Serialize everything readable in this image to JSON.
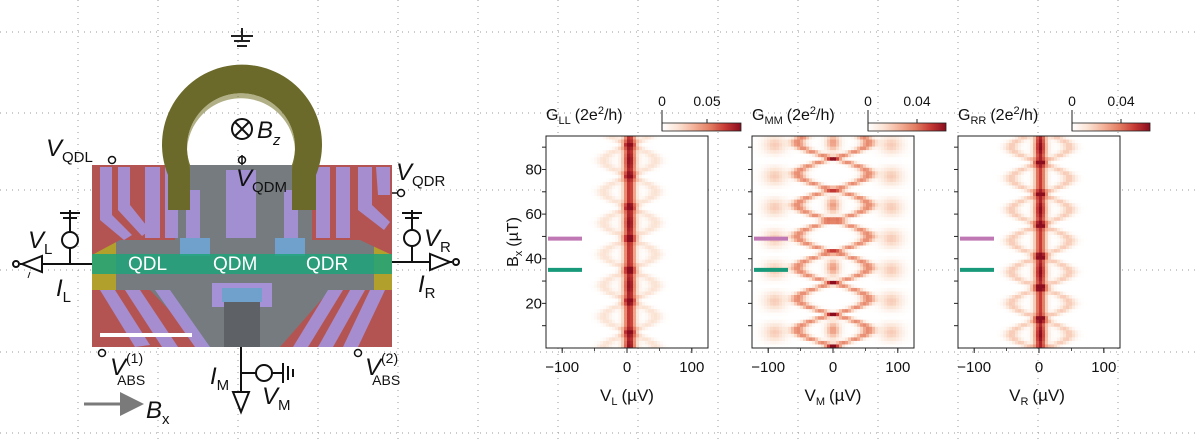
{
  "device": {
    "labels": {
      "v_qdl": "V",
      "v_qdl_sub": "QDL",
      "v_qdm": "V",
      "v_qdm_sub": "QDM",
      "v_qdr": "V",
      "v_qdr_sub": "QDR",
      "bz": "B",
      "bz_sub": "z",
      "vl": "V",
      "vl_sub": "L",
      "il": "I",
      "il_sub": "L",
      "vr": "V",
      "vr_sub": "R",
      "ir": "I",
      "ir_sub": "R",
      "qdl": "QDL",
      "qdm": "QDM",
      "qdr": "QDR",
      "vabs1": "V",
      "vabs1_sup": "(1)",
      "vabs1_sub": "ABS",
      "vabs2": "V",
      "vabs2_sup": "(2)",
      "vabs2_sub": "ABS",
      "im": "I",
      "im_sub": "M",
      "vm": "V",
      "vm_sub": "M",
      "bx": "B",
      "bx_sub": "x"
    },
    "colors": {
      "ring": "#6b6a2a",
      "gate_purple": "#a591d6",
      "contact_red": "#b35452",
      "wire_green": "#1fa37a",
      "lead_yellow": "#b2a02c",
      "substrate": "#757b7f"
    }
  },
  "chart_data": [
    {
      "type": "heatmap",
      "title": "G_LL (2e²/h)",
      "colorbar_label_main": "G",
      "colorbar_label_sub": "LL",
      "colorbar_label_unit": "(2e",
      "colorbar_label_tail": "/h)",
      "colorbar_ticks": [
        "0",
        "0.05"
      ],
      "colorbar_range": [
        0,
        0.07
      ],
      "xlabel_main": "V",
      "xlabel_sub": "L",
      "xlabel_unit": "(µV)",
      "ylabel_main": "B",
      "ylabel_sub": "x",
      "ylabel_unit": "(µT)",
      "xlim": [
        -125,
        125
      ],
      "ylim": [
        0,
        95
      ],
      "xticks": [
        -100,
        0,
        100
      ],
      "xtick_labels": [
        "−100",
        "0",
        "100"
      ],
      "yticks": [
        20,
        40,
        60,
        80
      ],
      "ytick_labels": [
        "20",
        "40",
        "60",
        "80"
      ],
      "markers": [
        {
          "color": "#c078b4",
          "b": 49
        },
        {
          "color": "#17997a",
          "b": 35
        }
      ]
    },
    {
      "type": "heatmap",
      "title": "G_MM (2e²/h)",
      "colorbar_label_main": "G",
      "colorbar_label_sub": "MM",
      "colorbar_label_unit": "(2e",
      "colorbar_label_tail": "/h)",
      "colorbar_ticks": [
        "0",
        "0.04"
      ],
      "colorbar_range": [
        0,
        0.055
      ],
      "xlabel_main": "V",
      "xlabel_sub": "M",
      "xlabel_unit": "(µV)",
      "xlim": [
        -125,
        125
      ],
      "ylim": [
        0,
        95
      ],
      "xticks": [
        -100,
        0,
        100
      ],
      "xtick_labels": [
        "−100",
        "0",
        "100"
      ],
      "markers": [
        {
          "color": "#c078b4",
          "b": 49
        },
        {
          "color": "#17997a",
          "b": 35
        }
      ]
    },
    {
      "type": "heatmap",
      "title": "G_RR (2e²/h)",
      "colorbar_label_main": "G",
      "colorbar_label_sub": "RR",
      "colorbar_label_unit": "(2e",
      "colorbar_label_tail": "/h)",
      "colorbar_ticks": [
        "0",
        "0.04"
      ],
      "colorbar_range": [
        0,
        0.055
      ],
      "xlabel_main": "V",
      "xlabel_sub": "R",
      "xlabel_unit": "(µV)",
      "xlim": [
        -125,
        125
      ],
      "ylim": [
        0,
        95
      ],
      "xticks": [
        -100,
        0,
        100
      ],
      "xtick_labels": [
        "−100",
        "0",
        "100"
      ],
      "markers": [
        {
          "color": "#c078b4",
          "b": 49
        },
        {
          "color": "#17997a",
          "b": 35
        }
      ]
    }
  ],
  "colormap": [
    "#ffffff",
    "#fbe3d4",
    "#f4b39a",
    "#e37f64",
    "#c73a35",
    "#8b0d1e"
  ]
}
